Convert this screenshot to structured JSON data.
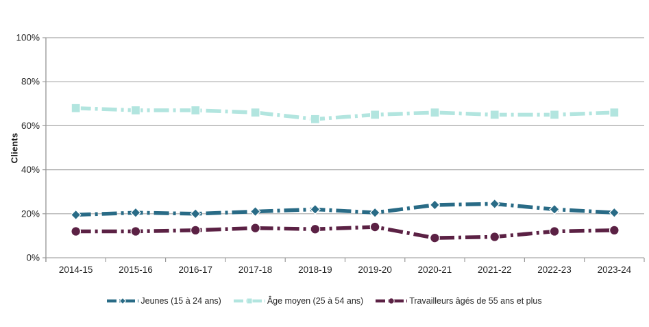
{
  "chart_data": {
    "type": "line",
    "title": "",
    "ylabel": "Clients",
    "xlabel": "",
    "ylim": [
      0,
      100
    ],
    "ytick_step": 20,
    "ytick_labels": [
      "0%",
      "20%",
      "40%",
      "60%",
      "80%",
      "100%"
    ],
    "grid": true,
    "legend_position": "bottom",
    "categories": [
      "2014-15",
      "2015-16",
      "2016-17",
      "2017-18",
      "2018-19",
      "2019-20",
      "2020-21",
      "2021-22",
      "2022-23",
      "2023-24"
    ],
    "series": [
      {
        "name": "Jeunes (15 à 24 ans)",
        "color": "#296b86",
        "marker": "diamond",
        "values": [
          19.5,
          20.5,
          20,
          21,
          22,
          20.5,
          24,
          24.5,
          22,
          20.5
        ]
      },
      {
        "name": "Âge moyen (25 à 54 ans)",
        "color": "#b2e5df",
        "marker": "square",
        "values": [
          68,
          67,
          67,
          66,
          63,
          65,
          66,
          65,
          65,
          66
        ]
      },
      {
        "name": "Travailleurs âgés de 55 ans et plus",
        "color": "#5b2144",
        "marker": "circle",
        "values": [
          12,
          12,
          12.5,
          13.5,
          13,
          14,
          9,
          9.5,
          12,
          12.5
        ]
      }
    ],
    "colors": {
      "gridline": "#a9a9a9",
      "axis": "#9b9b9b",
      "tick_text": "#262626"
    }
  }
}
